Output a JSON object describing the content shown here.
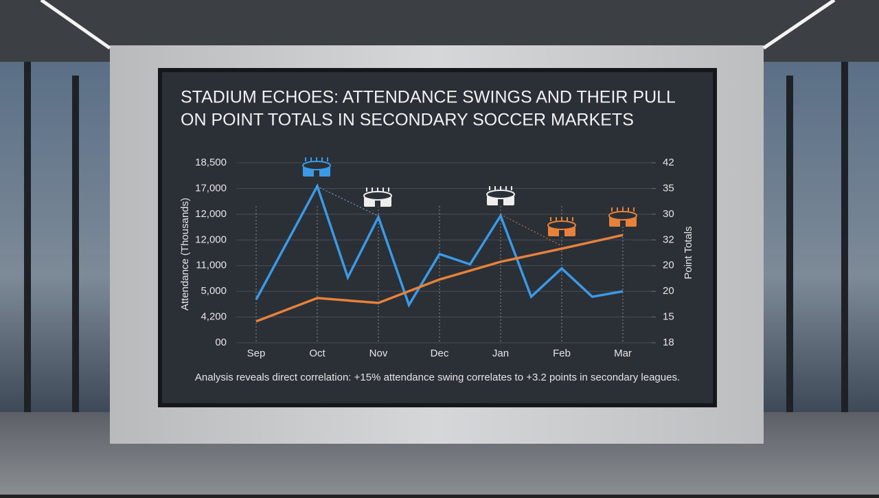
{
  "chart_data": {
    "type": "line",
    "title": [
      "STADIUM ECHOES: ATTENDANCE SWINGS AND THEIR PULL",
      "ON POINT TOTALS IN SECONDARY SOCCER MARKETS"
    ],
    "categories": [
      "Sep",
      "Oct",
      "Nov",
      "Dec",
      "Jan",
      "Feb",
      "Mar"
    ],
    "y_label": "Attendance (Thousands)",
    "y2_label": "Point Totals",
    "ylim": [
      0,
      7
    ],
    "yticks": [
      {
        "value": 0,
        "label": "00"
      },
      {
        "value": 1,
        "label": "4,200"
      },
      {
        "value": 2,
        "label": "5,000"
      },
      {
        "value": 3,
        "label": "11,000"
      },
      {
        "value": 4,
        "label": "12,000"
      },
      {
        "value": 5,
        "label": "12,000"
      },
      {
        "value": 6,
        "label": "17,000"
      },
      {
        "value": 7,
        "label": "18,500"
      }
    ],
    "y2lim": [
      0,
      7
    ],
    "y2ticks": [
      {
        "value": 0,
        "label": "18"
      },
      {
        "value": 1,
        "label": "15"
      },
      {
        "value": 2,
        "label": "20"
      },
      {
        "value": 3,
        "label": "20"
      },
      {
        "value": 4,
        "label": "32"
      },
      {
        "value": 5,
        "label": "30"
      },
      {
        "value": 6,
        "label": "35"
      },
      {
        "value": 7,
        "label": "42"
      }
    ],
    "series": [
      {
        "color": "#3b9ae8",
        "x": [
          0,
          1,
          1.5,
          2,
          2.5,
          3,
          3.5,
          4,
          4.5,
          5,
          5.5,
          6
        ],
        "values": [
          1.68,
          6.09,
          2.54,
          4.89,
          1.47,
          3.45,
          3.05,
          4.94,
          1.79,
          2.89,
          1.79,
          2.0
        ]
      },
      {
        "color": "#e8813a",
        "axis": "y2",
        "x": [
          0,
          1,
          2,
          3,
          4,
          5,
          6
        ],
        "values": [
          0.83,
          1.74,
          1.55,
          2.46,
          3.15,
          3.66,
          4.19
        ]
      }
    ],
    "annotation": "Analysis reveals direct correlation: +15% attendance swing correlates to +3.2 points in secondary leagues."
  }
}
